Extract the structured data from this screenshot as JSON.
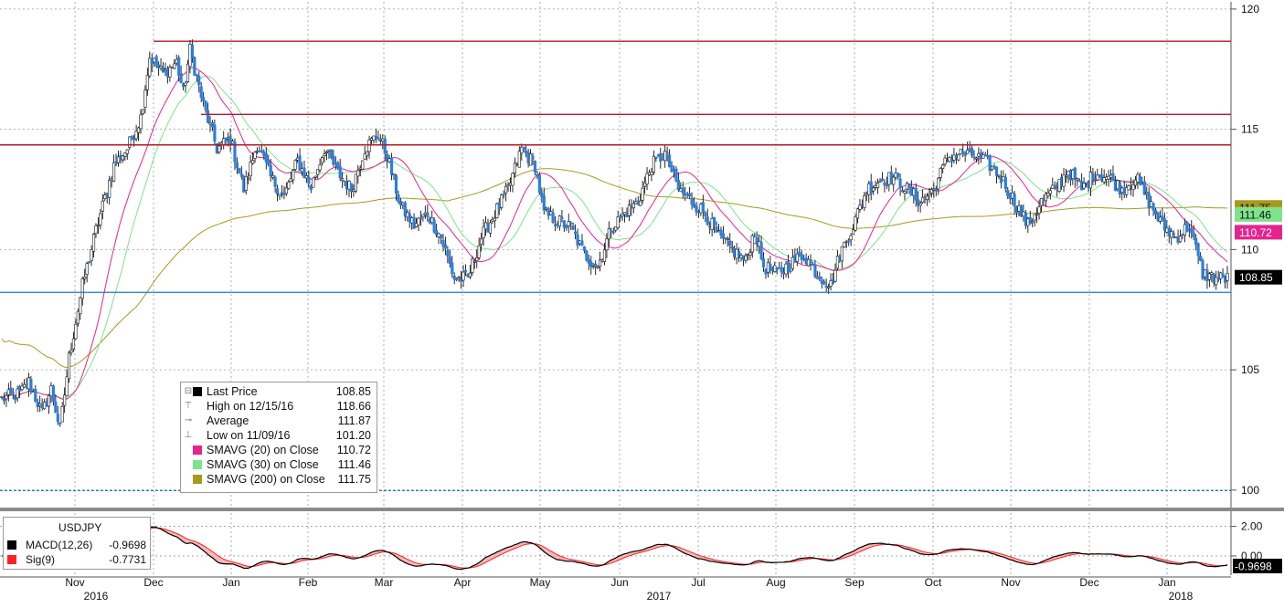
{
  "chart_data": [
    {
      "type": "candlestick",
      "symbol": "USDJPY",
      "ylim": [
        99.5,
        120.3
      ],
      "y_ticks": [
        "100",
        "105",
        "110",
        "115",
        "120"
      ],
      "x_month_labels": [
        "Nov",
        "Dec",
        "Jan",
        "Feb",
        "Mar",
        "Apr",
        "May",
        "Jun",
        "Jul",
        "Aug",
        "Sep",
        "Oct",
        "Nov",
        "Dec",
        "Jan"
      ],
      "x_year_labels": [
        "2016",
        "2017",
        "2018"
      ],
      "anchors": [
        [
          0,
          103.8
        ],
        [
          8,
          104.0
        ],
        [
          12,
          104.5
        ],
        [
          18,
          103.2
        ],
        [
          22,
          104.2
        ],
        [
          26,
          102.5
        ],
        [
          30,
          105.5
        ],
        [
          36,
          108.5
        ],
        [
          42,
          110.8
        ],
        [
          50,
          113.5
        ],
        [
          56,
          114.2
        ],
        [
          62,
          115.5
        ],
        [
          66,
          118.0
        ],
        [
          72,
          117.3
        ],
        [
          78,
          117.8
        ],
        [
          81,
          116.5
        ],
        [
          84,
          118.3
        ],
        [
          90,
          116.0
        ],
        [
          96,
          114.2
        ],
        [
          102,
          114.6
        ],
        [
          108,
          112.5
        ],
        [
          114,
          114.4
        ],
        [
          120,
          113.0
        ],
        [
          126,
          112.2
        ],
        [
          132,
          113.7
        ],
        [
          138,
          112.6
        ],
        [
          144,
          114.2
        ],
        [
          150,
          113.2
        ],
        [
          156,
          112.5
        ],
        [
          162,
          114.2
        ],
        [
          168,
          114.8
        ],
        [
          172,
          113.9
        ],
        [
          178,
          111.8
        ],
        [
          184,
          111.0
        ],
        [
          190,
          111.5
        ],
        [
          196,
          110.5
        ],
        [
          202,
          108.8
        ],
        [
          208,
          108.8
        ],
        [
          214,
          110.5
        ],
        [
          220,
          111.5
        ],
        [
          226,
          112.5
        ],
        [
          232,
          114.2
        ],
        [
          238,
          113.5
        ],
        [
          242,
          111.5
        ],
        [
          248,
          111.2
        ],
        [
          254,
          110.9
        ],
        [
          260,
          109.8
        ],
        [
          266,
          109.3
        ],
        [
          272,
          110.9
        ],
        [
          278,
          111.5
        ],
        [
          284,
          112.0
        ],
        [
          290,
          113.5
        ],
        [
          296,
          114.0
        ],
        [
          302,
          112.5
        ],
        [
          308,
          112.0
        ],
        [
          314,
          111.5
        ],
        [
          320,
          110.5
        ],
        [
          326,
          110.0
        ],
        [
          332,
          109.5
        ],
        [
          336,
          110.8
        ],
        [
          340,
          109.3
        ],
        [
          346,
          109.0
        ],
        [
          352,
          109.4
        ],
        [
          358,
          109.8
        ],
        [
          364,
          109.0
        ],
        [
          370,
          108.5
        ],
        [
          374,
          109.8
        ],
        [
          380,
          111.0
        ],
        [
          386,
          112.5
        ],
        [
          392,
          112.9
        ],
        [
          398,
          113.0
        ],
        [
          404,
          112.5
        ],
        [
          410,
          112.0
        ],
        [
          416,
          112.5
        ],
        [
          422,
          113.8
        ],
        [
          428,
          114.0
        ],
        [
          434,
          113.9
        ],
        [
          440,
          113.6
        ],
        [
          446,
          113.0
        ],
        [
          452,
          112.0
        ],
        [
          458,
          111.0
        ],
        [
          464,
          112.0
        ],
        [
          470,
          112.5
        ],
        [
          476,
          113.3
        ],
        [
          482,
          112.5
        ],
        [
          488,
          113.2
        ],
        [
          494,
          113.0
        ],
        [
          500,
          112.5
        ],
        [
          506,
          113.0
        ],
        [
          512,
          112.0
        ],
        [
          518,
          111.0
        ],
        [
          524,
          110.5
        ],
        [
          530,
          111.0
        ],
        [
          536,
          109.0
        ],
        [
          542,
          108.8
        ]
      ],
      "series": [
        {
          "name": "Last Price",
          "value": "108.85",
          "color": "#000000",
          "tag_color": "#000000",
          "tag_value": "108.85"
        },
        {
          "name": "High on 12/15/16",
          "value": "118.66",
          "color": "#b2182b"
        },
        {
          "name": "Average",
          "value": "111.87",
          "color": "#888888"
        },
        {
          "name": "Low on 11/09/16",
          "value": "101.20",
          "color": "#888888"
        },
        {
          "name": "SMAVG (20) on Close",
          "value": "110.72",
          "color": "#e6248f",
          "tag_value": "110.72"
        },
        {
          "name": "SMAVG (30) on Close",
          "value": "111.46",
          "color": "#7fe38a",
          "tag_value": "111.46"
        },
        {
          "name": "SMAVG (200) on Close",
          "value": "111.75",
          "color": "#a89a1e",
          "tag_value": "111.75"
        }
      ],
      "horizontal_lines": [
        {
          "value": 118.66,
          "color": "#b2182b"
        },
        {
          "value": 115.62,
          "color": "#b2182b"
        },
        {
          "value": 114.35,
          "color": "#b2182b"
        },
        {
          "value": 108.22,
          "color": "#1e78d2"
        },
        {
          "value": 99.98,
          "color": "#1e78d2"
        }
      ]
    },
    {
      "type": "line",
      "title": "USDJPY",
      "ylim": [
        -1.3,
        2.9
      ],
      "y_ticks": [
        "2.00",
        "0.00"
      ],
      "series": [
        {
          "name": "MACD(12,26)",
          "value": "-0.9698",
          "color": "#000000",
          "tag_value": "-0.9698"
        },
        {
          "name": "Sig(9)",
          "value": "-0.7731",
          "color": "#ff2020"
        }
      ]
    }
  ]
}
